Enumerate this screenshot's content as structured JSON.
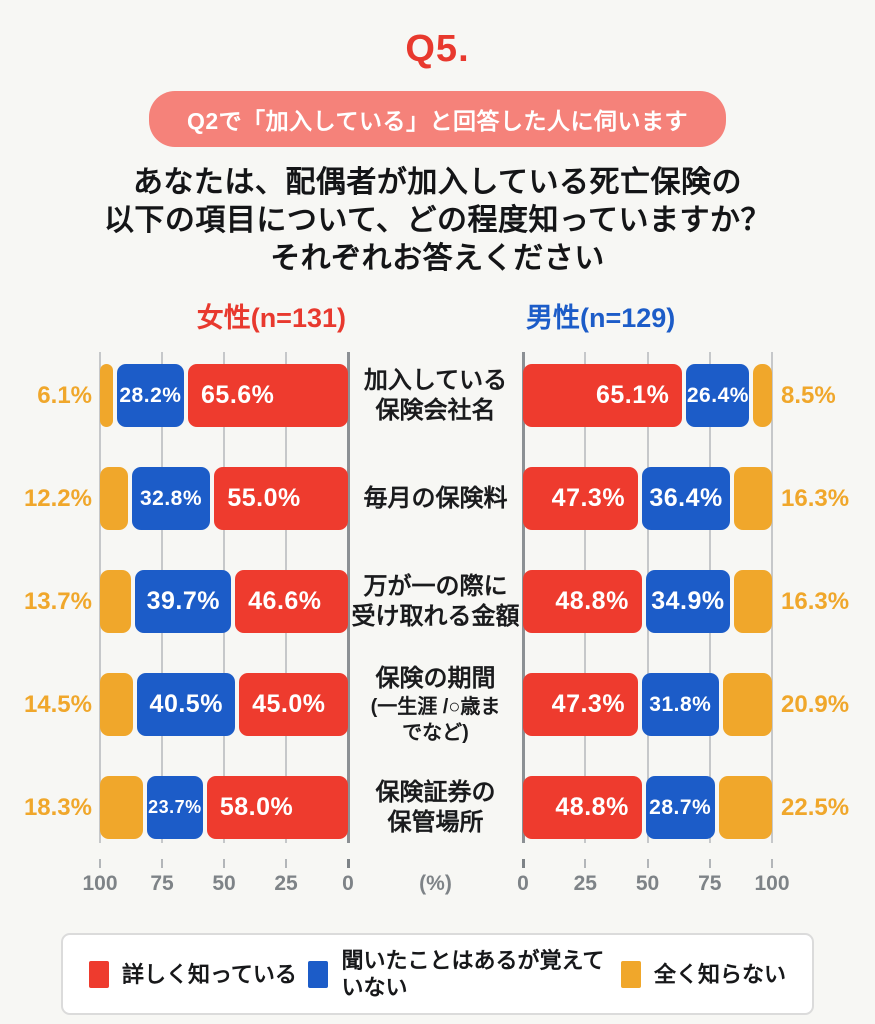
{
  "header": {
    "question_no": "Q5.",
    "badge": "Q2で「加入している」と回答した人に伺います",
    "title_lines": [
      "あなたは、配偶者が加入している死亡保険の",
      "以下の項目について、どの程度知っていますか？",
      "それぞれお答えください"
    ]
  },
  "chart_data": {
    "type": "bar",
    "layout": "diverging-butterfly-stacked",
    "unit_label": "(%)",
    "axis_ticks": [
      0,
      25,
      50,
      75,
      100
    ],
    "axis_range": [
      0,
      100
    ],
    "grid": true,
    "legend_position": "bottom",
    "legend": [
      {
        "key": "detail",
        "label": "詳しく知っている",
        "color": "#EE3B2E"
      },
      {
        "key": "heard",
        "label": "聞いたことはあるが覚えていない",
        "color": "#1C5CC8"
      },
      {
        "key": "none",
        "label": "全く知らない",
        "color": "#F0A72B"
      }
    ],
    "categories": [
      {
        "lines": [
          "加入している",
          "保険会社名"
        ]
      },
      {
        "lines": [
          "毎月の保険料"
        ]
      },
      {
        "lines": [
          "万が一の際に",
          "受け取れる金額"
        ]
      },
      {
        "lines": [
          "保険の期間"
        ],
        "sub_lines": [
          "(一生涯 /○歳ま",
          "でなど)"
        ]
      },
      {
        "lines": [
          "保険証券の",
          "保管場所"
        ]
      }
    ],
    "groups": [
      {
        "title": "女性(n=131)",
        "side": "left",
        "title_color": "#E8392E",
        "rows": [
          [
            65.6,
            28.2,
            6.1
          ],
          [
            55.0,
            32.8,
            12.2
          ],
          [
            46.6,
            39.7,
            13.7
          ],
          [
            45.0,
            40.5,
            14.5
          ],
          [
            58.0,
            23.7,
            18.3
          ]
        ]
      },
      {
        "title": "男性(n=129)",
        "side": "right",
        "title_color": "#1C5CC8",
        "rows": [
          [
            65.1,
            26.4,
            8.5
          ],
          [
            47.3,
            36.4,
            16.3
          ],
          [
            48.8,
            34.9,
            16.3
          ],
          [
            47.3,
            31.8,
            20.9
          ],
          [
            48.8,
            28.7,
            22.5
          ]
        ]
      }
    ]
  },
  "colors": {
    "background": "#F7F7F4",
    "badge": "#F5827A",
    "question_red": "#E8392E",
    "gridline": "#C6C8CA",
    "axis_zero_line": "#8C9094",
    "axis_text": "#7E8387"
  }
}
